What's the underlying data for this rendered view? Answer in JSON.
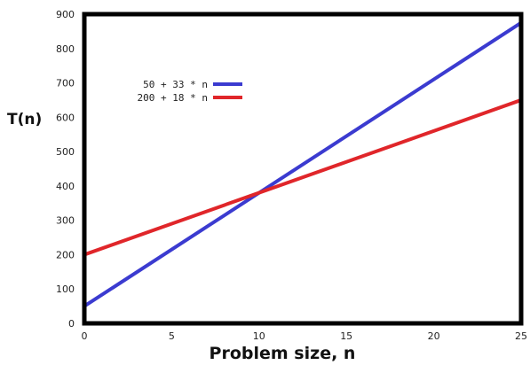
{
  "chart_data": {
    "type": "line",
    "title": "",
    "xlabel": "Problem size, n",
    "ylabel": "T(n)",
    "xlim": [
      0,
      25
    ],
    "ylim": [
      0,
      900
    ],
    "xticks": [
      0,
      5,
      10,
      15,
      20,
      25
    ],
    "yticks": [
      0,
      100,
      200,
      300,
      400,
      500,
      600,
      700,
      800,
      900
    ],
    "grid": false,
    "legend_position": "upper-left",
    "series": [
      {
        "name": "50 + 33 * n",
        "color": "#3b3bd0",
        "x": [
          0,
          25
        ],
        "y": [
          50,
          875
        ]
      },
      {
        "name": "200 + 18 * n",
        "color": "#e0262a",
        "x": [
          0,
          25
        ],
        "y": [
          200,
          650
        ]
      }
    ]
  }
}
